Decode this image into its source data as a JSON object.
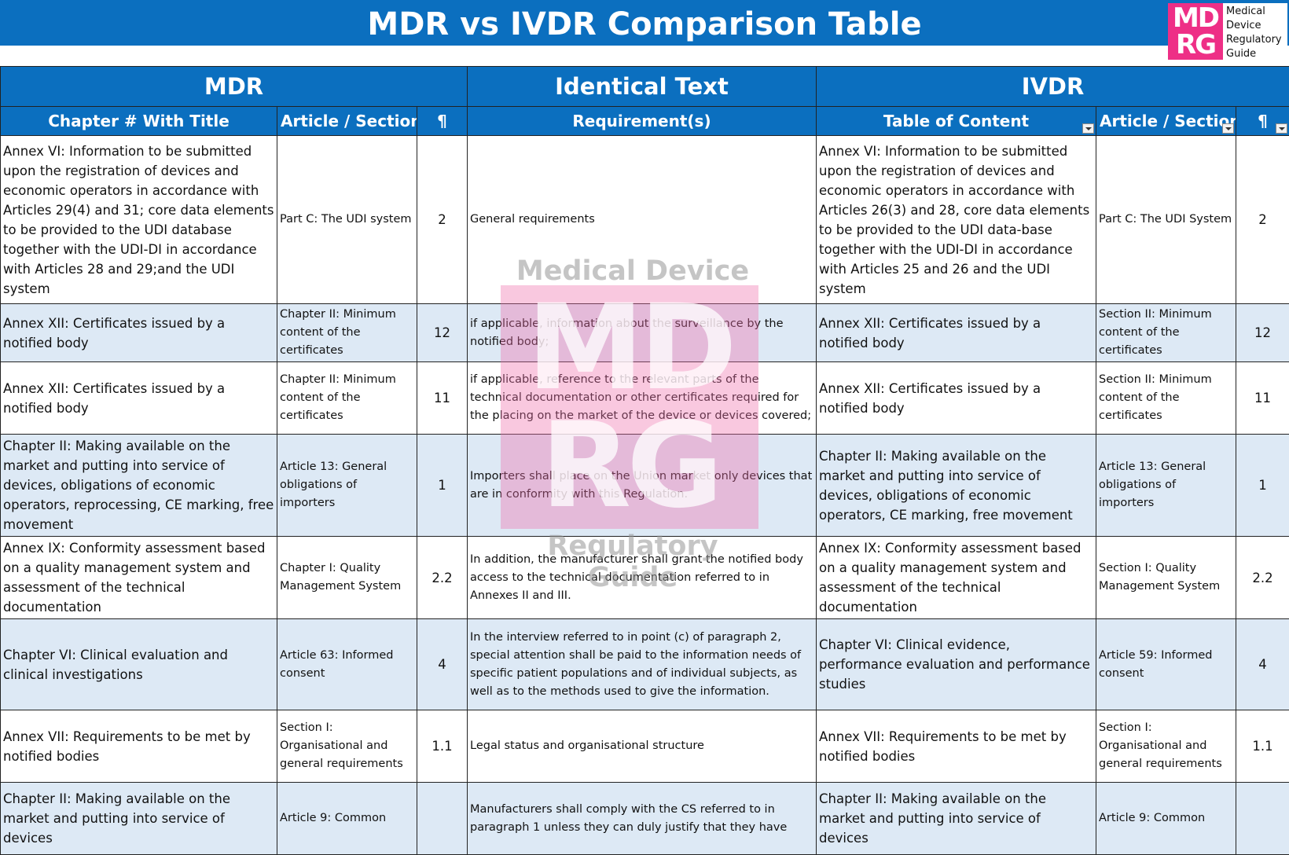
{
  "title": "MDR vs IVDR Comparison Table",
  "logo": {
    "mark_line1": "MD",
    "mark_line2": "RG",
    "text": [
      "Medical",
      "Device",
      "Regulatory",
      "Guide"
    ]
  },
  "watermark": {
    "top": "Medical Device",
    "line1": "MD",
    "line2": "RG",
    "bottom": "Regulatory Guide"
  },
  "groups": {
    "mdr": "MDR",
    "identical": "Identical Text",
    "ivdr": "IVDR"
  },
  "columns": {
    "mdr_chapter": "Chapter # With Title",
    "mdr_article": "Article / Section",
    "mdr_para": "¶",
    "requirement": "Requirement(s)",
    "ivdr_toc": "Table of Content",
    "ivdr_article": "Article / Section",
    "ivdr_para": "¶"
  },
  "rows": [
    {
      "mdr_chapter": "Annex VI: Information to be submitted upon the registration of devices and economic operators in accordance with Articles 29(4) and 31; core data elements to be provided to the UDI database together with the UDI-DI in accordance with Articles 28 and 29;and the UDI system",
      "mdr_article": "Part C: The UDI system",
      "mdr_para": "2",
      "requirement": "General requirements",
      "ivdr_toc": "Annex VI: Information to be submitted upon the registration of devices and economic operators in accordance with Articles 26(3) and 28, core data elements to be provided to the UDI data-base together with the UDI-DI in accordance with Articles 25 and 26 and the UDI system",
      "ivdr_article": "Part C: The UDI System",
      "ivdr_para": "2"
    },
    {
      "mdr_chapter": "Annex XII: Certificates issued by a notified body",
      "mdr_article": "Chapter II: Minimum content of the certificates",
      "mdr_para": "12",
      "requirement": "if applicable, information about the surveillance by the notified body;",
      "ivdr_toc": "Annex XII: Certificates issued by a notified body",
      "ivdr_article": "Section II: Minimum content of the certificates",
      "ivdr_para": "12"
    },
    {
      "mdr_chapter": "Annex XII: Certificates issued by a notified body",
      "mdr_article": "Chapter II: Minimum content of the certificates",
      "mdr_para": "11",
      "requirement": "if applicable, reference to the relevant parts of the technical documentation or other certificates required for the placing on the market of the device or devices covered;",
      "ivdr_toc": "Annex XII: Certificates issued by a notified body",
      "ivdr_article": "Section II: Minimum content of the certificates",
      "ivdr_para": "11"
    },
    {
      "mdr_chapter": "Chapter II: Making available on the market and putting into service of devices, obligations of economic operators, reprocessing, CE marking, free movement",
      "mdr_article": "Article 13: General obligations of importers",
      "mdr_para": "1",
      "requirement": "Importers shall place on the Union market only devices that are in conformity with this Regulation.",
      "ivdr_toc": "Chapter II: Making available on the market and putting into service of devices, obligations of economic operators, CE marking, free movement",
      "ivdr_article": "Article 13: General obligations of importers",
      "ivdr_para": "1"
    },
    {
      "mdr_chapter": "Annex IX: Conformity assessment based on a quality management system and assessment of the technical documentation",
      "mdr_article": "Chapter I: Quality Management System",
      "mdr_para": "2.2",
      "requirement": "In addition, the manufacturer shall grant the notified body access to the technical documentation referred to in Annexes II and III.",
      "ivdr_toc": "Annex IX: Conformity assessment based on a quality management system and assessment of the technical documentation",
      "ivdr_article": "Section I: Quality Management System",
      "ivdr_para": "2.2"
    },
    {
      "mdr_chapter": "Chapter VI: Clinical evaluation and clinical investigations",
      "mdr_article": "Article 63: Informed consent",
      "mdr_para": "4",
      "requirement": "In the interview referred to in point (c) of paragraph 2, special attention shall be paid to the information needs of specific patient populations and of individual subjects, as well as to the methods used to give the information.",
      "ivdr_toc": "Chapter VI: Clinical evidence, performance evaluation  and performance studies",
      "ivdr_article": "Article 59: Informed consent",
      "ivdr_para": "4"
    },
    {
      "mdr_chapter": "Annex VII: Requirements to be met by notified bodies",
      "mdr_article": "Section I: Organisational and general requirements",
      "mdr_para": "1.1",
      "requirement": "Legal status and organisational structure",
      "ivdr_toc": "Annex VII: Requirements to be met by notified bodies",
      "ivdr_article": "Section I: Organisational and general requirements",
      "ivdr_para": "1.1"
    },
    {
      "mdr_chapter": "Chapter II: Making available on the market and putting into service of devices",
      "mdr_article": "Article 9: Common",
      "mdr_para": "",
      "requirement": "Manufacturers shall comply with the CS referred to in paragraph 1 unless they can duly justify that they have",
      "ivdr_toc": "Chapter II: Making available on the market and putting into service of devices",
      "ivdr_article": "Article 9: Common",
      "ivdr_para": ""
    }
  ]
}
